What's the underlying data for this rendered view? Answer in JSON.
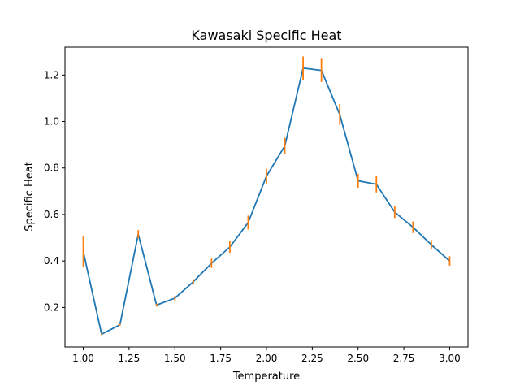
{
  "chart_data": {
    "type": "line",
    "title": "Kawasaki Specific Heat",
    "xlabel": "Temperature",
    "ylabel": "Specific Heat",
    "xlim": [
      0.9,
      3.1
    ],
    "ylim": [
      0.03,
      1.32
    ],
    "xticks": [
      1.0,
      1.25,
      1.5,
      1.75,
      2.0,
      2.25,
      2.5,
      2.75,
      3.0
    ],
    "xtick_labels": [
      "1.00",
      "1.25",
      "1.50",
      "1.75",
      "2.00",
      "2.25",
      "2.50",
      "2.75",
      "3.00"
    ],
    "yticks": [
      0.2,
      0.4,
      0.6,
      0.8,
      1.0,
      1.2
    ],
    "ytick_labels": [
      "0.2",
      "0.4",
      "0.6",
      "0.8",
      "1.0",
      "1.2"
    ],
    "grid": false,
    "legend": "none",
    "series": [
      {
        "color": "#1f77b4",
        "error_color": "#ff7f0e",
        "x": [
          1.0,
          1.1,
          1.2,
          1.3,
          1.4,
          1.5,
          1.6,
          1.7,
          1.8,
          1.9,
          2.0,
          2.1,
          2.2,
          2.3,
          2.4,
          2.5,
          2.6,
          2.7,
          2.8,
          2.9,
          3.0
        ],
        "y": [
          0.44,
          0.085,
          0.125,
          0.515,
          0.21,
          0.24,
          0.31,
          0.39,
          0.46,
          0.565,
          0.765,
          0.895,
          1.23,
          1.22,
          1.03,
          0.745,
          0.73,
          0.61,
          0.545,
          0.47,
          0.4
        ],
        "yerr": [
          0.065,
          0.004,
          0.004,
          0.018,
          0.006,
          0.01,
          0.012,
          0.02,
          0.025,
          0.03,
          0.032,
          0.035,
          0.05,
          0.05,
          0.045,
          0.03,
          0.035,
          0.025,
          0.025,
          0.02,
          0.02
        ]
      }
    ]
  }
}
